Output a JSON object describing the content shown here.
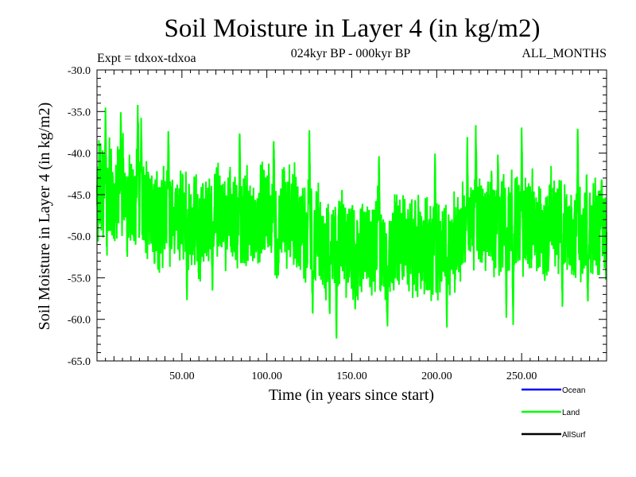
{
  "chart_data": {
    "type": "line",
    "title": "Soil Moisture in Layer 4 (in kg/m2)",
    "subtitle_left": "Expt = tdxox-tdxoa",
    "subtitle_center": "024kyr BP - 000kyr BP",
    "subtitle_right": "ALL_MONTHS",
    "xlabel": "Time (in years since start)",
    "ylabel": "Soil Moisture in Layer 4 (in kg/m2)",
    "xlim": [
      0,
      300
    ],
    "ylim": [
      -65,
      -30
    ],
    "x_ticks": [
      50,
      100,
      150,
      200,
      250
    ],
    "x_tick_labels": [
      "50.00",
      "100.00",
      "150.00",
      "200.00",
      "250.00"
    ],
    "y_ticks": [
      -30,
      -35,
      -40,
      -45,
      -50,
      -55,
      -60,
      -65
    ],
    "y_tick_labels": [
      "-30.0",
      "-35.0",
      "-40.0",
      "-45.0",
      "-50.0",
      "-55.0",
      "-60.0",
      "-65.0"
    ],
    "grid": false,
    "legend_position": "bottom-right",
    "legend": [
      {
        "name": "Ocean",
        "color": "#0000ff"
      },
      {
        "name": "Land",
        "color": "#00ff00"
      },
      {
        "name": "AllSurf",
        "color": "#000000"
      }
    ],
    "series": [
      {
        "name": "Land",
        "color": "#00ff00",
        "x_start": 0,
        "x_step": 0.0833,
        "mean_profile": [
          [
            0,
            -45.5
          ],
          [
            10,
            -45.5
          ],
          [
            20,
            -46.5
          ],
          [
            30,
            -47
          ],
          [
            50,
            -48
          ],
          [
            70,
            -48.5
          ],
          [
            90,
            -48
          ],
          [
            110,
            -48
          ],
          [
            130,
            -50
          ],
          [
            140,
            -51
          ],
          [
            150,
            -51.5
          ],
          [
            170,
            -51
          ],
          [
            190,
            -51
          ],
          [
            200,
            -51.5
          ],
          [
            210,
            -51
          ],
          [
            230,
            -48
          ],
          [
            250,
            -48.5
          ],
          [
            270,
            -48.5
          ],
          [
            290,
            -49
          ],
          [
            300,
            -49
          ]
        ],
        "stats": {
          "max": -34,
          "min": -62.8,
          "max_at": 24,
          "min_at": 141
        },
        "extremes": [
          [
            24,
            -34
          ],
          [
            5,
            -34.5
          ],
          [
            14,
            -35
          ],
          [
            26,
            -35.5
          ],
          [
            42,
            -37
          ],
          [
            84,
            -37
          ],
          [
            104,
            -38
          ],
          [
            125,
            -36.5
          ],
          [
            166,
            -40
          ],
          [
            199,
            -40
          ],
          [
            218,
            -38
          ],
          [
            223,
            -36.5
          ],
          [
            236,
            -40
          ],
          [
            250,
            -36.5
          ],
          [
            283,
            -36.5
          ],
          [
            297,
            -43
          ],
          [
            141,
            -62.8
          ],
          [
            152,
            -59
          ],
          [
            171,
            -61
          ],
          [
            206,
            -61
          ],
          [
            241,
            -60
          ],
          [
            245,
            -61
          ],
          [
            274,
            -59
          ],
          [
            289,
            -58.5
          ],
          [
            137,
            -60
          ],
          [
            127,
            -60
          ],
          [
            53,
            -58
          ],
          [
            106,
            -55
          ],
          [
            68,
            -57
          ]
        ]
      }
    ]
  }
}
